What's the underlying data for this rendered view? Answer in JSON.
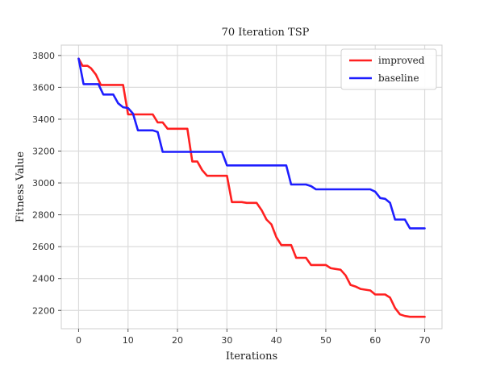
{
  "chart_data": {
    "type": "line",
    "title": "70 Iteration TSP",
    "xlabel": "Iterations",
    "ylabel": "Fitness Value",
    "xlim": [
      -3.5,
      73.5
    ],
    "ylim": [
      2085,
      3865
    ],
    "xticks": [
      0,
      10,
      20,
      30,
      40,
      50,
      60,
      70
    ],
    "yticks": [
      2200,
      2400,
      2600,
      2800,
      3000,
      3200,
      3400,
      3600,
      3800
    ],
    "grid": true,
    "legend_position": "top-right",
    "series": [
      {
        "name": "improved",
        "color": "#ff2020",
        "points": [
          [
            0,
            3780
          ],
          [
            0.8,
            3735
          ],
          [
            1.8,
            3735
          ],
          [
            2.5,
            3720
          ],
          [
            3.5,
            3680
          ],
          [
            4.5,
            3615
          ],
          [
            9,
            3615
          ],
          [
            10,
            3430
          ],
          [
            15,
            3430
          ],
          [
            16,
            3380
          ],
          [
            17,
            3380
          ],
          [
            18,
            3340
          ],
          [
            22,
            3340
          ],
          [
            23,
            3135
          ],
          [
            24,
            3135
          ],
          [
            25,
            3080
          ],
          [
            26,
            3045
          ],
          [
            30,
            3045
          ],
          [
            31,
            2880
          ],
          [
            33,
            2880
          ],
          [
            34,
            2875
          ],
          [
            36,
            2875
          ],
          [
            37,
            2830
          ],
          [
            38,
            2770
          ],
          [
            39,
            2740
          ],
          [
            40,
            2660
          ],
          [
            41,
            2610
          ],
          [
            43,
            2610
          ],
          [
            44,
            2530
          ],
          [
            46,
            2530
          ],
          [
            47,
            2485
          ],
          [
            50,
            2485
          ],
          [
            51,
            2465
          ],
          [
            53,
            2455
          ],
          [
            54,
            2420
          ],
          [
            55,
            2360
          ],
          [
            56,
            2350
          ],
          [
            57,
            2335
          ],
          [
            59,
            2325
          ],
          [
            60,
            2300
          ],
          [
            62,
            2300
          ],
          [
            63,
            2280
          ],
          [
            64,
            2215
          ],
          [
            65,
            2175
          ],
          [
            66,
            2165
          ],
          [
            67,
            2160
          ],
          [
            70,
            2160
          ]
        ]
      },
      {
        "name": "baseline",
        "color": "#1e1eff",
        "points": [
          [
            0,
            3780
          ],
          [
            1,
            3620
          ],
          [
            4,
            3620
          ],
          [
            5,
            3555
          ],
          [
            7,
            3555
          ],
          [
            8,
            3500
          ],
          [
            9,
            3475
          ],
          [
            10,
            3470
          ],
          [
            11,
            3435
          ],
          [
            12,
            3330
          ],
          [
            15,
            3330
          ],
          [
            16,
            3320
          ],
          [
            17,
            3195
          ],
          [
            29,
            3195
          ],
          [
            30,
            3110
          ],
          [
            42,
            3110
          ],
          [
            43,
            2990
          ],
          [
            46,
            2990
          ],
          [
            47,
            2980
          ],
          [
            48,
            2960
          ],
          [
            59,
            2960
          ],
          [
            60,
            2945
          ],
          [
            61,
            2905
          ],
          [
            62,
            2900
          ],
          [
            63,
            2875
          ],
          [
            64,
            2770
          ],
          [
            66,
            2770
          ],
          [
            67,
            2715
          ],
          [
            70,
            2715
          ]
        ]
      }
    ]
  }
}
